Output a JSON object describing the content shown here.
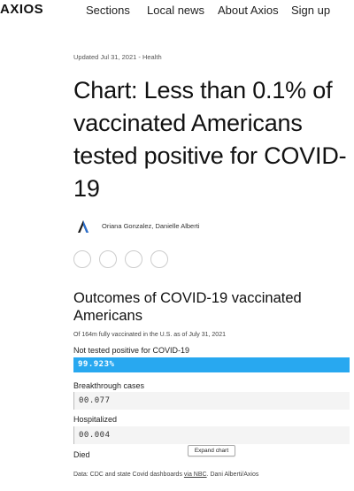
{
  "nav": {
    "logo": "AXIOS",
    "items": [
      "Sections",
      "Local news",
      "About Axios",
      "Sign up"
    ]
  },
  "article": {
    "meta": "Updated Jul 31, 2021 - Health",
    "headline": "Chart: Less than 0.1% of vaccinated Americans tested positive for COVID-19",
    "authors": "Oriana Gonzalez, Danielle Alberti"
  },
  "chart": {
    "title": "Outcomes of COVID-19 vaccinated Americans",
    "subtitle": "Of 164m fully vaccinated in the U.S. as of July 31, 2021",
    "expand_label": "Expand chart",
    "source_prefix": "Data: CDC and state Covid dashboards ",
    "source_link": "via NBC",
    "source_suffix": ". Dani Alberti/Axios"
  },
  "colors": {
    "bar_blue": "#28a8f0",
    "small_box": "#f4f4f4"
  },
  "chart_data": {
    "type": "bar",
    "categories": [
      "Not tested positive for COVID-19",
      "Breakthrough cases",
      "Hospitalized",
      "Died"
    ],
    "labels": [
      "99.923%",
      "00.077",
      "00.004",
      ""
    ],
    "values": [
      99.923,
      0.077,
      0.004,
      null
    ],
    "ylim": [
      0,
      100
    ]
  }
}
